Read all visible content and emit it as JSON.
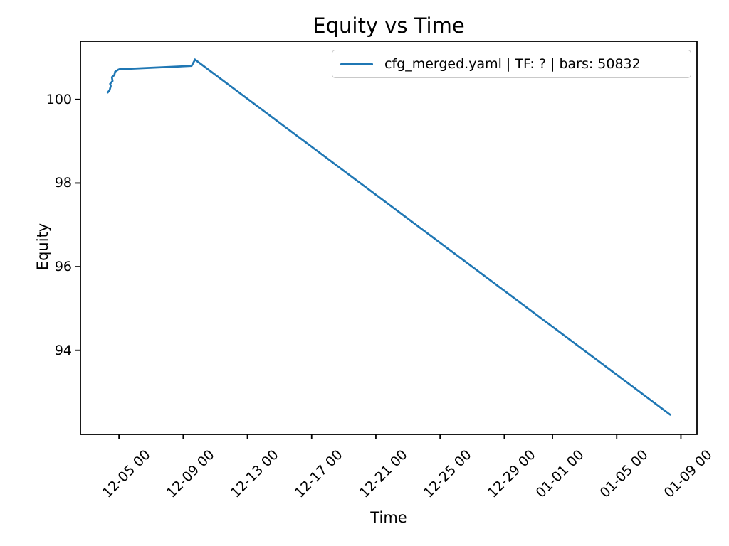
{
  "chart_data": {
    "type": "line",
    "title": "Equity vs Time",
    "xlabel": "Time",
    "ylabel": "Equity",
    "grid": false,
    "background_color": "#ffffff",
    "spine_color": "#000000",
    "text_color": "#000000",
    "legend": {
      "position": "upper right",
      "entries": [
        {
          "label": "cfg_merged.yaml | TF: ? | bars: 50832",
          "color": "#1f77b4"
        }
      ]
    },
    "x_axis": {
      "unit": "days relative to 12-05 00:00",
      "lim": [
        -2.4,
        36.0
      ],
      "tick_rotation_deg": 45,
      "ticks": [
        {
          "day": 0,
          "label": "12-05 00"
        },
        {
          "day": 4,
          "label": "12-09 00"
        },
        {
          "day": 8,
          "label": "12-13 00"
        },
        {
          "day": 12,
          "label": "12-17 00"
        },
        {
          "day": 16,
          "label": "12-21 00"
        },
        {
          "day": 20,
          "label": "12-25 00"
        },
        {
          "day": 24,
          "label": "12-29 00"
        },
        {
          "day": 27,
          "label": "01-01 00"
        },
        {
          "day": 31,
          "label": "01-05 00"
        },
        {
          "day": 35,
          "label": "01-09 00"
        }
      ]
    },
    "y_axis": {
      "lim": [
        91.99,
        101.39
      ],
      "ticks": [
        {
          "value": 100,
          "label": "100"
        },
        {
          "value": 98,
          "label": "98"
        },
        {
          "value": 96,
          "label": "96"
        },
        {
          "value": 94,
          "label": "94"
        }
      ]
    },
    "series": [
      {
        "name": "cfg_merged.yaml | TF: ? | bars: 50832",
        "color": "#1f77b4",
        "line_width": 2.7,
        "points": [
          [
            -0.73,
            100.15
          ],
          [
            -0.58,
            100.22
          ],
          [
            -0.51,
            100.32
          ],
          [
            -0.55,
            100.37
          ],
          [
            -0.4,
            100.44
          ],
          [
            -0.44,
            100.53
          ],
          [
            -0.29,
            100.58
          ],
          [
            -0.24,
            100.66
          ],
          [
            -0.04,
            100.71
          ],
          [
            0.04,
            100.72
          ],
          [
            4.52,
            100.8
          ],
          [
            4.74,
            100.95
          ],
          [
            34.37,
            92.45
          ]
        ]
      }
    ]
  }
}
